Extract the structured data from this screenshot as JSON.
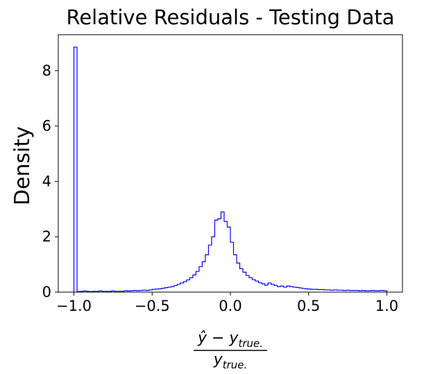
{
  "chart_data": {
    "type": "histogram",
    "title": "Relative Residuals - Testing Data",
    "ylabel": "Density",
    "xlabel": {
      "numerator_base": "ŷ − y",
      "numerator_sub": "true.",
      "denominator_base": "y",
      "denominator_sub": "true."
    },
    "xlim": [
      -1.1,
      1.1
    ],
    "ylim": [
      0,
      9.3
    ],
    "xticks": [
      -1.0,
      -0.5,
      0.0,
      0.5,
      1.0
    ],
    "xtick_labels": [
      "−1.0",
      "−0.5",
      "0.0",
      "0.5",
      "1.0"
    ],
    "yticks": [
      0,
      2,
      4,
      6,
      8
    ],
    "ytick_labels": [
      "0",
      "2",
      "4",
      "6",
      "8"
    ],
    "grid": false,
    "style": "step",
    "series": [
      {
        "color": "#0000ff",
        "bin_start": -1.0,
        "bin_width": 0.02,
        "densities": [
          8.85,
          0.02,
          0.03,
          0.04,
          0.03,
          0.02,
          0.03,
          0.03,
          0.04,
          0.03,
          0.03,
          0.03,
          0.04,
          0.03,
          0.03,
          0.03,
          0.05,
          0.04,
          0.05,
          0.06,
          0.05,
          0.06,
          0.07,
          0.06,
          0.08,
          0.1,
          0.11,
          0.12,
          0.14,
          0.16,
          0.18,
          0.2,
          0.24,
          0.28,
          0.33,
          0.38,
          0.44,
          0.52,
          0.62,
          0.75,
          0.92,
          1.1,
          1.35,
          1.7,
          2.0,
          2.6,
          2.65,
          2.9,
          2.55,
          2.35,
          1.8,
          1.35,
          1.05,
          0.85,
          0.72,
          0.6,
          0.52,
          0.45,
          0.4,
          0.34,
          0.3,
          0.25,
          0.33,
          0.28,
          0.24,
          0.2,
          0.22,
          0.18,
          0.22,
          0.2,
          0.18,
          0.17,
          0.15,
          0.13,
          0.12,
          0.11,
          0.1,
          0.1,
          0.09,
          0.09,
          0.08,
          0.08,
          0.07,
          0.08,
          0.07,
          0.07,
          0.06,
          0.07,
          0.06,
          0.06,
          0.06,
          0.05,
          0.06,
          0.05,
          0.05,
          0.06,
          0.05,
          0.05,
          0.06,
          0.05
        ]
      }
    ]
  }
}
